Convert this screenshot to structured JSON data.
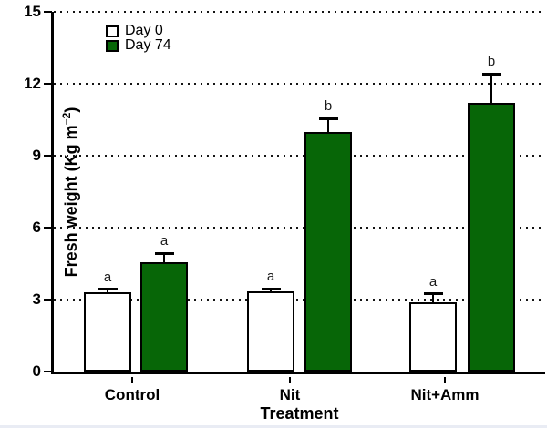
{
  "labels": {
    "ylabel_prefix": "Fresh weight (Kg m",
    "ylabel_sup": "−2",
    "ylabel_suffix": ")",
    "xlabel": "Treatment"
  },
  "legend": {
    "items": [
      {
        "label": "Day 0",
        "color": "#ffffff"
      },
      {
        "label": "Day 74",
        "color": "#076607"
      }
    ]
  },
  "chart_data": {
    "type": "bar",
    "title": "",
    "xlabel": "Treatment",
    "ylabel": "Fresh weight (Kg m⁻²)",
    "categories": [
      "Control",
      "Nit",
      "Nit+Amm"
    ],
    "series": [
      {
        "name": "Day 0",
        "color": "#ffffff",
        "values": [
          3.3,
          3.35,
          2.9
        ],
        "errors_upper": [
          0.12,
          0.1,
          0.33
        ],
        "sig_letters": [
          "a",
          "a",
          "a"
        ]
      },
      {
        "name": "Day 74",
        "color": "#076607",
        "values": [
          4.55,
          10.0,
          11.2
        ],
        "errors_upper": [
          0.37,
          0.55,
          1.2
        ],
        "sig_letters": [
          "a",
          "b",
          "b"
        ]
      }
    ],
    "ylim": [
      0,
      15
    ],
    "yticks": [
      0,
      3,
      6,
      9,
      12,
      15
    ],
    "grid": "dotted horizontal at yticks > 0",
    "legend_position": "top-left inside plot",
    "error_bars": "upper only, capped",
    "annotations": "significance letters above error bars"
  }
}
